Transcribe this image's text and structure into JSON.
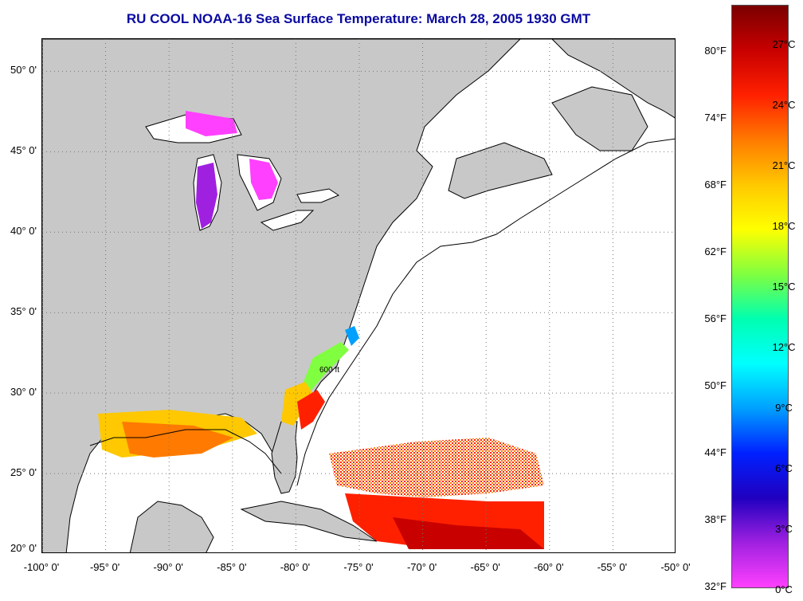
{
  "title": "RU COOL  NOAA-16  Sea Surface Temperature:  March 28, 2005 1930 GMT",
  "map": {
    "lon_range": [
      -100,
      -50
    ],
    "lat_range": [
      20,
      52
    ],
    "lat_ticks": [
      {
        "value": 50,
        "label": "50° 0'"
      },
      {
        "value": 45,
        "label": "45° 0'"
      },
      {
        "value": 40,
        "label": "40° 0'"
      },
      {
        "value": 35,
        "label": "35° 0'"
      },
      {
        "value": 30,
        "label": "30° 0'"
      },
      {
        "value": 25,
        "label": "25° 0'"
      },
      {
        "value": 20,
        "label": "20° 0'"
      }
    ],
    "lon_ticks": [
      {
        "value": -100,
        "label": "-100° 0'"
      },
      {
        "value": -95,
        "label": "-95° 0'"
      },
      {
        "value": -90,
        "label": "-90° 0'"
      },
      {
        "value": -85,
        "label": "-85° 0'"
      },
      {
        "value": -80,
        "label": "-80° 0'"
      },
      {
        "value": -75,
        "label": "-75° 0'"
      },
      {
        "value": -70,
        "label": "-70° 0'"
      },
      {
        "value": -65,
        "label": "-65° 0'"
      },
      {
        "value": -60,
        "label": "-60° 0'"
      },
      {
        "value": -55,
        "label": "-55° 0'"
      },
      {
        "value": -50,
        "label": "-50° 0'"
      }
    ],
    "isobath_label": "600 ft",
    "land_color": "#c8c8c8",
    "water_color": "#ffffff",
    "grid": "dotted"
  },
  "colorbar": {
    "fahrenheit_labels": [
      "80°F",
      "74°F",
      "68°F",
      "62°F",
      "56°F",
      "50°F",
      "44°F",
      "38°F",
      "32°F"
    ],
    "celsius_labels": [
      "27°C",
      "24°C",
      "21°C",
      "18°C",
      "15°C",
      "12°C",
      "9°C",
      "6°C",
      "3°C",
      "0°C"
    ],
    "colors_top_to_bottom": [
      "#7a0000",
      "#c80000",
      "#ff2000",
      "#ff7a00",
      "#ffc800",
      "#ffff00",
      "#80ff40",
      "#00ffb0",
      "#00ffff",
      "#00a0ff",
      "#0020ff",
      "#2000c0",
      "#a020e0",
      "#ff40ff"
    ]
  }
}
